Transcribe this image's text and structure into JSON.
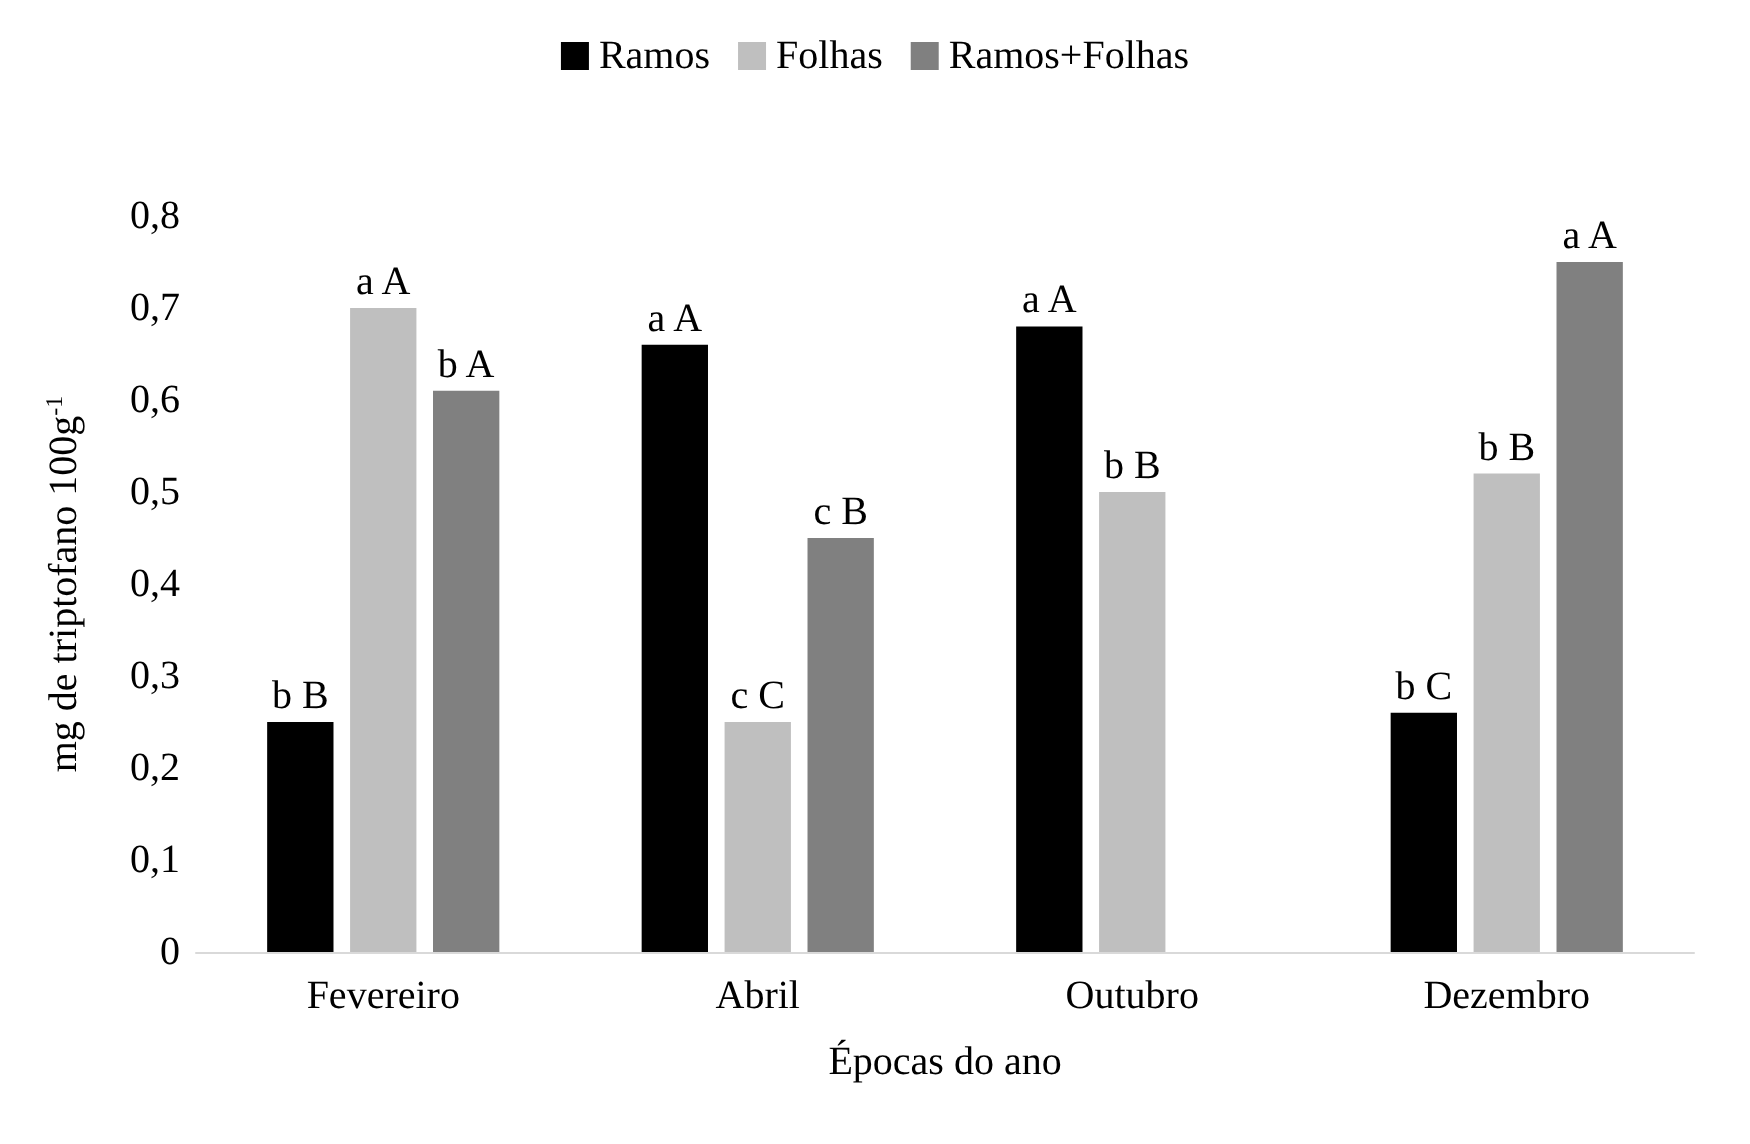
{
  "chart_data": {
    "type": "bar",
    "xlabel": "Épocas do ano",
    "ylabel": "mg de triptofano 100g$^{-1}$",
    "categories": [
      "Fevereiro",
      "Abril",
      "Outubro",
      "Dezembro"
    ],
    "series": [
      {
        "name": "Ramos",
        "color": "#000000",
        "values": [
          0.25,
          0.66,
          0.68,
          0.26
        ],
        "value_labels": [
          "b B",
          "a A",
          "a A",
          "b C"
        ]
      },
      {
        "name": "Folhas",
        "color": "#bfbfbf",
        "values": [
          0.7,
          0.25,
          0.5,
          0.52
        ],
        "value_labels": [
          "a A",
          "c C",
          "b B",
          "b B"
        ]
      },
      {
        "name": "Ramos+Folhas",
        "color": "#808080",
        "values": [
          0.61,
          0.45,
          null,
          0.75
        ],
        "value_labels": [
          "b A",
          "c B",
          null,
          "a A"
        ]
      }
    ],
    "ylim": [
      0,
      0.8
    ],
    "yticks": [
      0,
      {
        "value": 0.1,
        "label": "0,1"
      },
      {
        "value": 0.2,
        "label": "0,2"
      },
      {
        "value": 0.3,
        "label": "0,3"
      },
      {
        "value": 0.4,
        "label": "0,4"
      },
      {
        "value": 0.5,
        "label": "0,5"
      },
      {
        "value": 0.6,
        "label": "0,6"
      },
      {
        "value": 0.7,
        "label": "0,7"
      },
      {
        "value": 0.8,
        "label": "0,8"
      }
    ],
    "grid": false,
    "legend": "top"
  }
}
